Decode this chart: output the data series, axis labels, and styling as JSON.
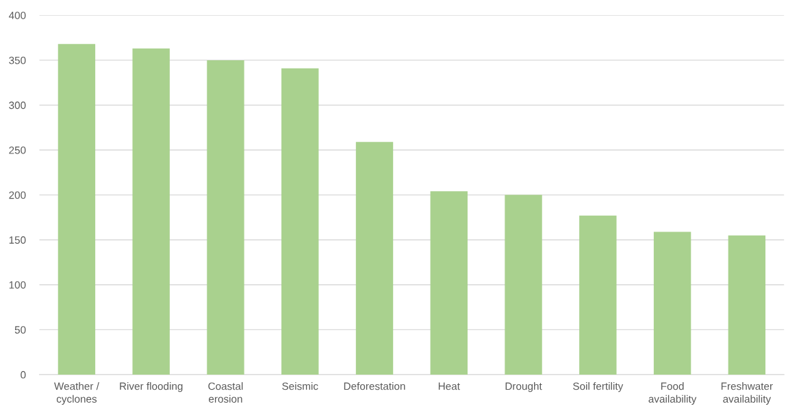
{
  "chart_data": {
    "type": "bar",
    "categories": [
      "Weather / cyclones",
      "River flooding",
      "Coastal erosion",
      "Seismic",
      "Deforestation",
      "Heat",
      "Drought",
      "Soil fertility",
      "Food availability",
      "Freshwater availability"
    ],
    "values": [
      368,
      363,
      350,
      341,
      259,
      204,
      200,
      177,
      159,
      155
    ],
    "color": "#a9d18e",
    "ylim": [
      0,
      400
    ],
    "yticks": [
      0,
      50,
      100,
      150,
      200,
      250,
      300,
      350,
      400
    ],
    "grid": "y",
    "legend": false
  }
}
